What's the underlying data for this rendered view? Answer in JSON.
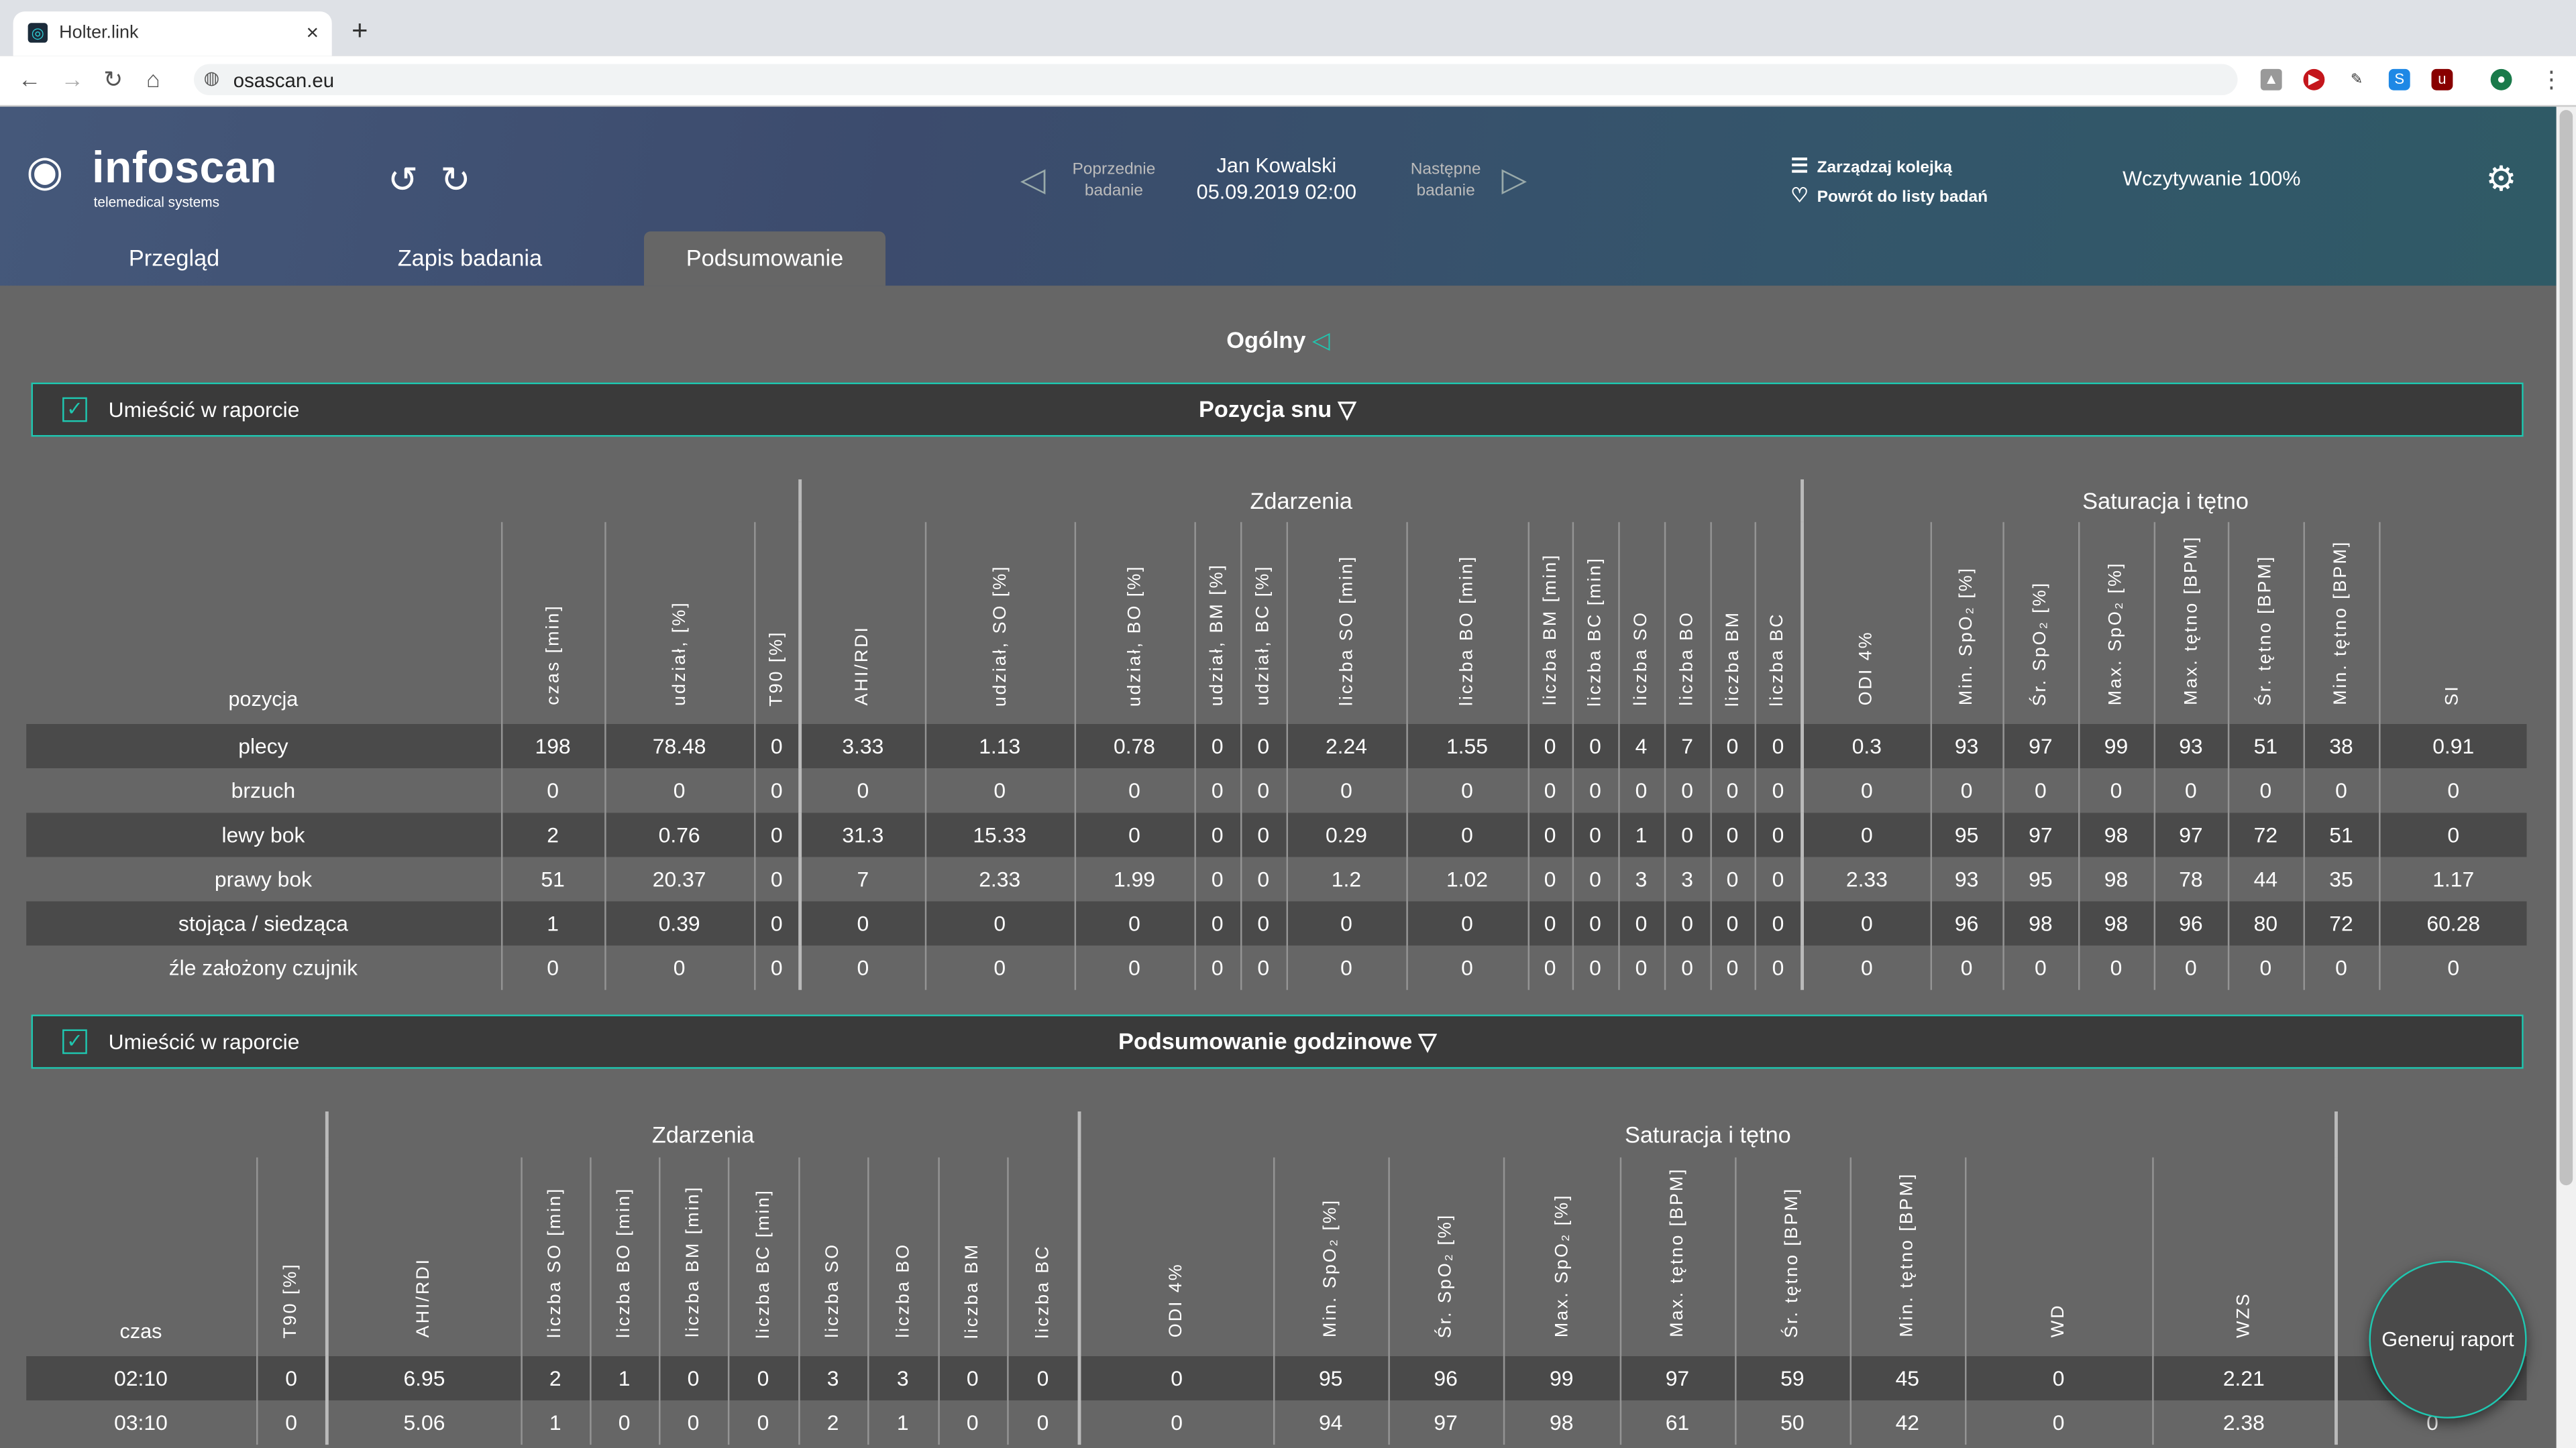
{
  "browser": {
    "tab_title": "Holter.link",
    "url": "osascan.eu",
    "icons": [
      "back-icon",
      "forward-icon",
      "reload-icon",
      "home-icon",
      "globe-icon",
      "drive-icon",
      "youtube-icon",
      "extension-icon",
      "skype-icon",
      "ublock-icon",
      "profile-icon",
      "menu-icon"
    ]
  },
  "header": {
    "logo": "infoscan",
    "tagline": "telemedical systems",
    "prev_label": "Poprzednie badanie",
    "patient_name": "Jan Kowalski",
    "exam_date": "05.09.2019 02:00",
    "next_label": "Następne badanie",
    "queue_label": "Zarządzaj kolejką",
    "back_label": "Powrót do listy badań",
    "loading": "Wczytywanie 100%"
  },
  "tabs": [
    {
      "label": "Przegląd",
      "active": false
    },
    {
      "label": "Zapis badania",
      "active": false
    },
    {
      "label": "Podsumowanie",
      "active": true
    }
  ],
  "section": {
    "title": "Ogólny"
  },
  "colors": {
    "accent": "#1fc7b0",
    "background": "#666666",
    "row_dark": "#4a4a4a",
    "bar": "#3a3a3a"
  },
  "sleep_position": {
    "include_label": "Umieścić w raporcie",
    "include_checked": true,
    "title": "Pozycja snu",
    "groups": [
      {
        "label": "",
        "span": 4
      },
      {
        "label": "Zdarzenia",
        "span": 13
      },
      {
        "label": "Saturacja i tętno",
        "span": 8
      }
    ],
    "columns": [
      "pozycja",
      "czas [min]",
      "udział, [%]",
      "T90 [%]",
      "AHI/RDI",
      "udział, SO [%]",
      "udział, BO [%]",
      "udział, BM [%]",
      "udział, BC [%]",
      "liczba SO [min]",
      "liczba BO [min]",
      "liczba BM [min]",
      "liczba BC [min]",
      "liczba SO",
      "liczba BO",
      "liczba BM",
      "liczba BC",
      "ODI 4%",
      "Min. SpO₂ [%]",
      "Śr. SpO₂ [%]",
      "Max. SpO₂ [%]",
      "Max. tętno [BPM]",
      "Śr. tętno [BPM]",
      "Min. tętno [BPM]",
      "SI"
    ],
    "rows": [
      [
        "plecy",
        "198",
        "78.48",
        "0",
        "3.33",
        "1.13",
        "0.78",
        "0",
        "0",
        "2.24",
        "1.55",
        "0",
        "0",
        "4",
        "7",
        "0",
        "0",
        "0.3",
        "93",
        "97",
        "99",
        "93",
        "51",
        "38",
        "0.91"
      ],
      [
        "brzuch",
        "0",
        "0",
        "0",
        "0",
        "0",
        "0",
        "0",
        "0",
        "0",
        "0",
        "0",
        "0",
        "0",
        "0",
        "0",
        "0",
        "0",
        "0",
        "0",
        "0",
        "0",
        "0",
        "0",
        "0"
      ],
      [
        "lewy bok",
        "2",
        "0.76",
        "0",
        "31.3",
        "15.33",
        "0",
        "0",
        "0",
        "0.29",
        "0",
        "0",
        "0",
        "1",
        "0",
        "0",
        "0",
        "0",
        "95",
        "97",
        "98",
        "97",
        "72",
        "51",
        "0"
      ],
      [
        "prawy bok",
        "51",
        "20.37",
        "0",
        "7",
        "2.33",
        "1.99",
        "0",
        "0",
        "1.2",
        "1.02",
        "0",
        "0",
        "3",
        "3",
        "0",
        "0",
        "2.33",
        "93",
        "95",
        "98",
        "78",
        "44",
        "35",
        "1.17"
      ],
      [
        "stojąca / siedząca",
        "1",
        "0.39",
        "0",
        "0",
        "0",
        "0",
        "0",
        "0",
        "0",
        "0",
        "0",
        "0",
        "0",
        "0",
        "0",
        "0",
        "0",
        "96",
        "98",
        "98",
        "96",
        "80",
        "72",
        "60.28"
      ],
      [
        "źle założony czujnik",
        "0",
        "0",
        "0",
        "0",
        "0",
        "0",
        "0",
        "0",
        "0",
        "0",
        "0",
        "0",
        "0",
        "0",
        "0",
        "0",
        "0",
        "0",
        "0",
        "0",
        "0",
        "0",
        "0",
        "0"
      ]
    ]
  },
  "hourly": {
    "include_label": "Umieścić w raporcie",
    "include_checked": true,
    "title": "Podsumowanie godzinowe",
    "groups": [
      {
        "label": "",
        "span": 2
      },
      {
        "label": "Zdarzenia",
        "span": 9
      },
      {
        "label": "Saturacja i tętno",
        "span": 9
      },
      {
        "label": "",
        "span": 1
      }
    ],
    "columns": [
      "czas",
      "T90 [%]",
      "AHI/RDI",
      "liczba SO [min]",
      "liczba BO [min]",
      "liczba BM [min]",
      "liczba BC [min]",
      "liczba SO",
      "liczba BO",
      "liczba BM",
      "liczba BC",
      "ODI 4%",
      "Min. SpO₂ [%]",
      "Śr. SpO₂ [%]",
      "Max. SpO₂ [%]",
      "Max. tętno [BPM]",
      "Śr. tętno [BPM]",
      "Min. tętno [BPM]",
      "WD",
      "WZS",
      ""
    ],
    "rows": [
      [
        "02:10",
        "0",
        "6.95",
        "2",
        "1",
        "0",
        "0",
        "3",
        "3",
        "0",
        "0",
        "0",
        "95",
        "96",
        "99",
        "97",
        "59",
        "45",
        "0",
        "2.21",
        ""
      ],
      [
        "03:10",
        "0",
        "5.06",
        "1",
        "0",
        "0",
        "0",
        "2",
        "1",
        "0",
        "0",
        "0",
        "94",
        "97",
        "98",
        "61",
        "50",
        "42",
        "0",
        "2.38",
        "0"
      ]
    ]
  },
  "generate_button": "Generuj raport"
}
